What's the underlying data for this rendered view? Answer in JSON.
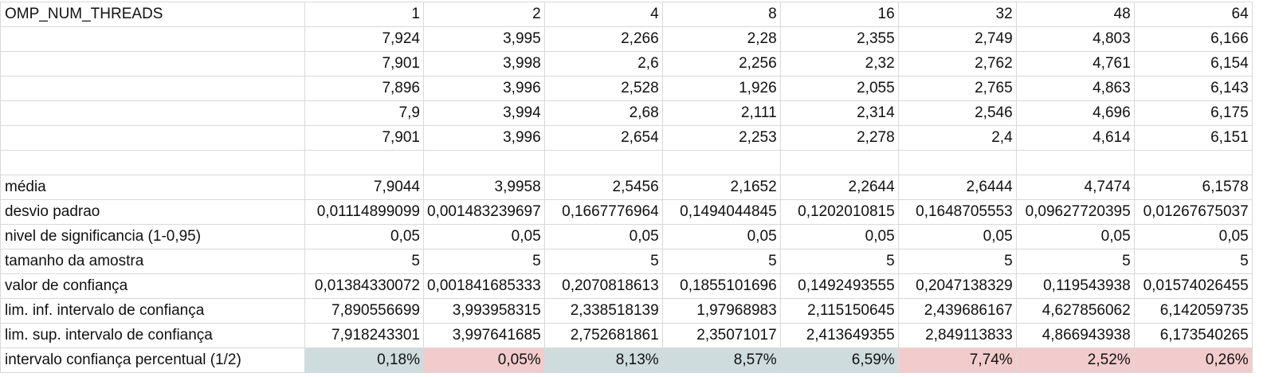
{
  "header": {
    "label": "OMP_NUM_THREADS",
    "threads": [
      "1",
      "2",
      "4",
      "8",
      "16",
      "32",
      "48",
      "64"
    ]
  },
  "runs": [
    [
      "7,924",
      "3,995",
      "2,266",
      "2,28",
      "2,355",
      "2,749",
      "4,803",
      "6,166"
    ],
    [
      "7,901",
      "3,998",
      "2,6",
      "2,256",
      "2,32",
      "2,762",
      "4,761",
      "6,154"
    ],
    [
      "7,896",
      "3,996",
      "2,528",
      "1,926",
      "2,055",
      "2,765",
      "4,863",
      "6,143"
    ],
    [
      "7,9",
      "3,994",
      "2,68",
      "2,111",
      "2,314",
      "2,546",
      "4,696",
      "6,175"
    ],
    [
      "7,901",
      "3,996",
      "2,654",
      "2,253",
      "2,278",
      "2,4",
      "4,614",
      "6,151"
    ]
  ],
  "stats": [
    {
      "label": "média",
      "values": [
        "7,9044",
        "3,9958",
        "2,5456",
        "2,1652",
        "2,2644",
        "2,6444",
        "4,7474",
        "6,1578"
      ]
    },
    {
      "label": "desvio padrao",
      "values": [
        "0,01114899099",
        "0,001483239697",
        "0,1667776964",
        "0,1494044845",
        "0,1202010815",
        "0,1648705553",
        "0,09627720395",
        "0,01267675037"
      ]
    },
    {
      "label": "nivel de significancia (1-0,95)",
      "values": [
        "0,05",
        "0,05",
        "0,05",
        "0,05",
        "0,05",
        "0,05",
        "0,05",
        "0,05"
      ]
    },
    {
      "label": "tamanho da amostra",
      "values": [
        "5",
        "5",
        "5",
        "5",
        "5",
        "5",
        "5",
        "5"
      ]
    },
    {
      "label": "valor de confiança",
      "values": [
        "0,01384330072",
        "0,001841685333",
        "0,2070818613",
        "0,1855101696",
        "0,1492493555",
        "0,2047138329",
        "0,119543938",
        "0,01574026455"
      ]
    },
    {
      "label": "lim. inf. intervalo de confiança",
      "values": [
        "7,890556699",
        "3,993958315",
        "2,338518139",
        "1,97968983",
        "2,115150645",
        "2,439686167",
        "4,627856062",
        "6,142059735"
      ]
    },
    {
      "label": "lim. sup. intervalo de confiança",
      "values": [
        "7,918243301",
        "3,997641685",
        "2,752681861",
        "2,35071017",
        "2,413649355",
        "2,849113833",
        "4,866943938",
        "6,173540265"
      ]
    }
  ],
  "percent_row": {
    "label": "intervalo confiança percentual (1/2)",
    "values": [
      "0,18%",
      "0,05%",
      "8,13%",
      "8,57%",
      "6,59%",
      "7,74%",
      "2,52%",
      "0,26%"
    ],
    "highlight": [
      "blue",
      "pink",
      "blue",
      "blue",
      "blue",
      "pink",
      "pink",
      "pink"
    ]
  },
  "colors": {
    "blue": "#cfdcde",
    "pink": "#f2cccc",
    "grid": "#d9d9d9"
  }
}
